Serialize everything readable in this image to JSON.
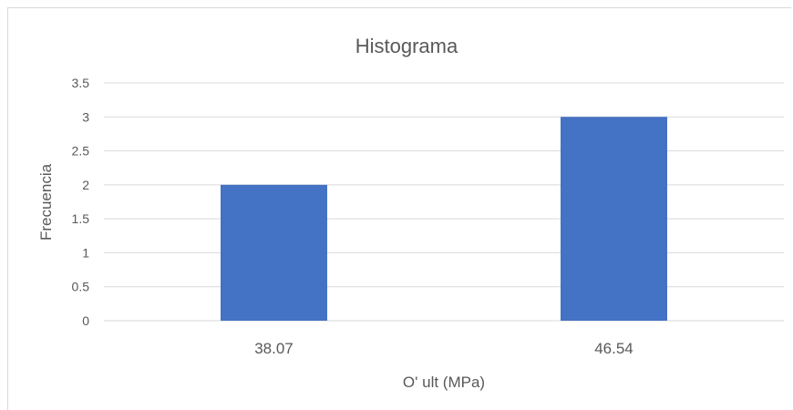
{
  "chart_data": {
    "type": "bar",
    "title": "Histograma",
    "xlabel": "O' ult (MPa)",
    "ylabel": "Frecuencia",
    "categories": [
      "38.07",
      "46.54"
    ],
    "values": [
      2,
      3
    ],
    "ylim": [
      0,
      3.5
    ],
    "yticks": [
      "0",
      "0.5",
      "1",
      "1.5",
      "2",
      "2.5",
      "3",
      "3.5"
    ],
    "grid": true,
    "legend": "none",
    "bar_color": "#4472c4",
    "gridline_color": "#d9d9d9",
    "text_color": "#595959"
  }
}
